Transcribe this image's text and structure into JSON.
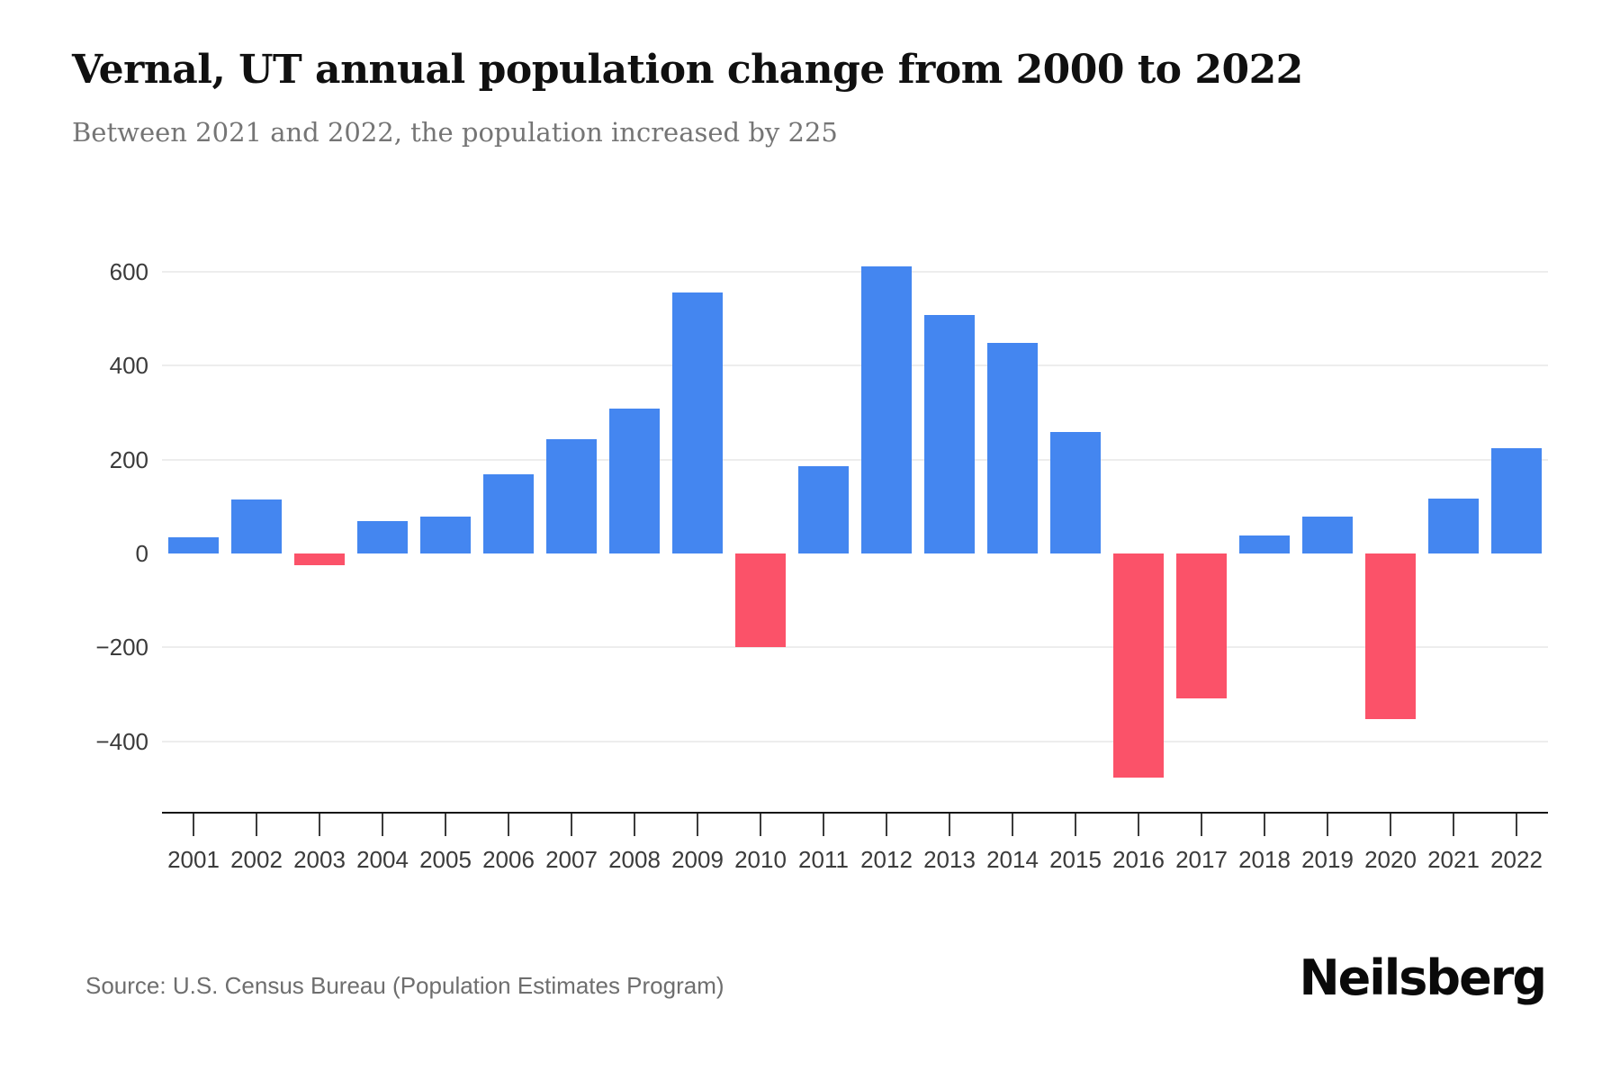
{
  "page": {
    "background": "#ffffff"
  },
  "header": {
    "title": "Vernal, UT annual population change from 2000 to 2022",
    "subtitle": "Between 2021 and 2022, the population increased by 225"
  },
  "footer": {
    "source": "Source: U.S. Census Bureau (Population Estimates Program)",
    "brand": "Neilsberg"
  },
  "chart_data": {
    "type": "bar",
    "title": "Vernal, UT annual population change from 2000 to 2022",
    "subtitle": "Between 2021 and 2022, the population increased by 225",
    "categories": [
      "2001",
      "2002",
      "2003",
      "2004",
      "2005",
      "2006",
      "2007",
      "2008",
      "2009",
      "2010",
      "2011",
      "2012",
      "2013",
      "2014",
      "2015",
      "2016",
      "2017",
      "2018",
      "2019",
      "2020",
      "2021",
      "2022"
    ],
    "values": [
      34,
      116,
      -25,
      70,
      79,
      168,
      244,
      308,
      557,
      -200,
      186,
      612,
      508,
      448,
      260,
      -477,
      -308,
      38,
      78,
      -352,
      117,
      225
    ],
    "series_name": "Annual population change",
    "xlabel": "",
    "ylabel": "",
    "y_ticks": [
      600,
      400,
      200,
      0,
      -200,
      -400
    ],
    "ylim": [
      -550,
      700
    ],
    "grid": "horizontal",
    "legend": "none",
    "colors": {
      "positive_bar": "#4486F0",
      "negative_bar": "#FB5269",
      "gridline": "#ededed",
      "axis_line": "#161616",
      "tick_text": "#3b3b3b"
    }
  }
}
